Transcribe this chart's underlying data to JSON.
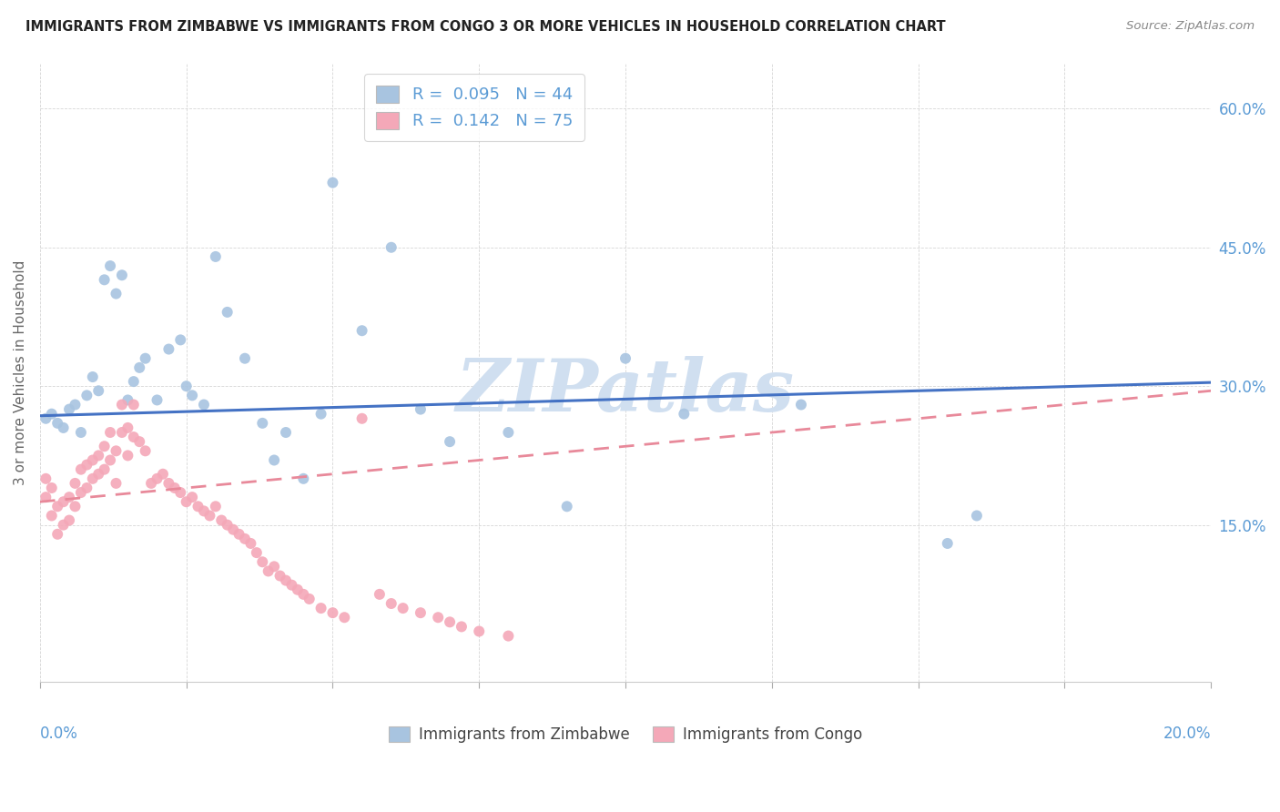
{
  "title": "IMMIGRANTS FROM ZIMBABWE VS IMMIGRANTS FROM CONGO 3 OR MORE VEHICLES IN HOUSEHOLD CORRELATION CHART",
  "source": "Source: ZipAtlas.com",
  "ylabel": "3 or more Vehicles in Household",
  "x_range": [
    0.0,
    0.2
  ],
  "y_range": [
    -0.02,
    0.65
  ],
  "y_ticks": [
    0.15,
    0.3,
    0.45,
    0.6
  ],
  "x_ticks": [
    0.0,
    0.025,
    0.05,
    0.075,
    0.1,
    0.125,
    0.15,
    0.175,
    0.2
  ],
  "zimbabwe_color": "#a8c4e0",
  "congo_color": "#f4a8b8",
  "zimbabwe_line_color": "#4472c4",
  "congo_line_color": "#e8899a",
  "watermark": "ZIPatlas",
  "watermark_color": "#d0dff0",
  "legend_r1": "0.095",
  "legend_n1": "44",
  "legend_r2": "0.142",
  "legend_n2": "75",
  "zim_intercept": 0.268,
  "zim_slope": 0.18,
  "congo_intercept": 0.175,
  "congo_slope": 0.6,
  "zim_x": [
    0.001,
    0.002,
    0.003,
    0.004,
    0.005,
    0.006,
    0.007,
    0.008,
    0.009,
    0.01,
    0.011,
    0.012,
    0.013,
    0.014,
    0.015,
    0.016,
    0.017,
    0.018,
    0.02,
    0.022,
    0.024,
    0.025,
    0.026,
    0.028,
    0.03,
    0.032,
    0.035,
    0.038,
    0.04,
    0.042,
    0.045,
    0.048,
    0.05,
    0.055,
    0.06,
    0.065,
    0.07,
    0.08,
    0.09,
    0.1,
    0.11,
    0.13,
    0.155,
    0.16
  ],
  "zim_y": [
    0.265,
    0.27,
    0.26,
    0.255,
    0.275,
    0.28,
    0.25,
    0.29,
    0.31,
    0.295,
    0.415,
    0.43,
    0.4,
    0.42,
    0.285,
    0.305,
    0.32,
    0.33,
    0.285,
    0.34,
    0.35,
    0.3,
    0.29,
    0.28,
    0.44,
    0.38,
    0.33,
    0.26,
    0.22,
    0.25,
    0.2,
    0.27,
    0.52,
    0.36,
    0.45,
    0.275,
    0.24,
    0.25,
    0.17,
    0.33,
    0.27,
    0.28,
    0.13,
    0.16
  ],
  "congo_x": [
    0.001,
    0.001,
    0.002,
    0.002,
    0.003,
    0.003,
    0.004,
    0.004,
    0.005,
    0.005,
    0.006,
    0.006,
    0.007,
    0.007,
    0.008,
    0.008,
    0.009,
    0.009,
    0.01,
    0.01,
    0.011,
    0.011,
    0.012,
    0.012,
    0.013,
    0.013,
    0.014,
    0.014,
    0.015,
    0.015,
    0.016,
    0.016,
    0.017,
    0.018,
    0.019,
    0.02,
    0.021,
    0.022,
    0.023,
    0.024,
    0.025,
    0.026,
    0.027,
    0.028,
    0.029,
    0.03,
    0.031,
    0.032,
    0.033,
    0.034,
    0.035,
    0.036,
    0.037,
    0.038,
    0.039,
    0.04,
    0.041,
    0.042,
    0.043,
    0.044,
    0.045,
    0.046,
    0.048,
    0.05,
    0.052,
    0.055,
    0.058,
    0.06,
    0.062,
    0.065,
    0.068,
    0.07,
    0.072,
    0.075,
    0.08
  ],
  "congo_y": [
    0.2,
    0.18,
    0.19,
    0.16,
    0.17,
    0.14,
    0.175,
    0.15,
    0.18,
    0.155,
    0.195,
    0.17,
    0.21,
    0.185,
    0.215,
    0.19,
    0.22,
    0.2,
    0.225,
    0.205,
    0.235,
    0.21,
    0.25,
    0.22,
    0.23,
    0.195,
    0.28,
    0.25,
    0.255,
    0.225,
    0.28,
    0.245,
    0.24,
    0.23,
    0.195,
    0.2,
    0.205,
    0.195,
    0.19,
    0.185,
    0.175,
    0.18,
    0.17,
    0.165,
    0.16,
    0.17,
    0.155,
    0.15,
    0.145,
    0.14,
    0.135,
    0.13,
    0.12,
    0.11,
    0.1,
    0.105,
    0.095,
    0.09,
    0.085,
    0.08,
    0.075,
    0.07,
    0.06,
    0.055,
    0.05,
    0.265,
    0.075,
    0.065,
    0.06,
    0.055,
    0.05,
    0.045,
    0.04,
    0.035,
    0.03
  ]
}
